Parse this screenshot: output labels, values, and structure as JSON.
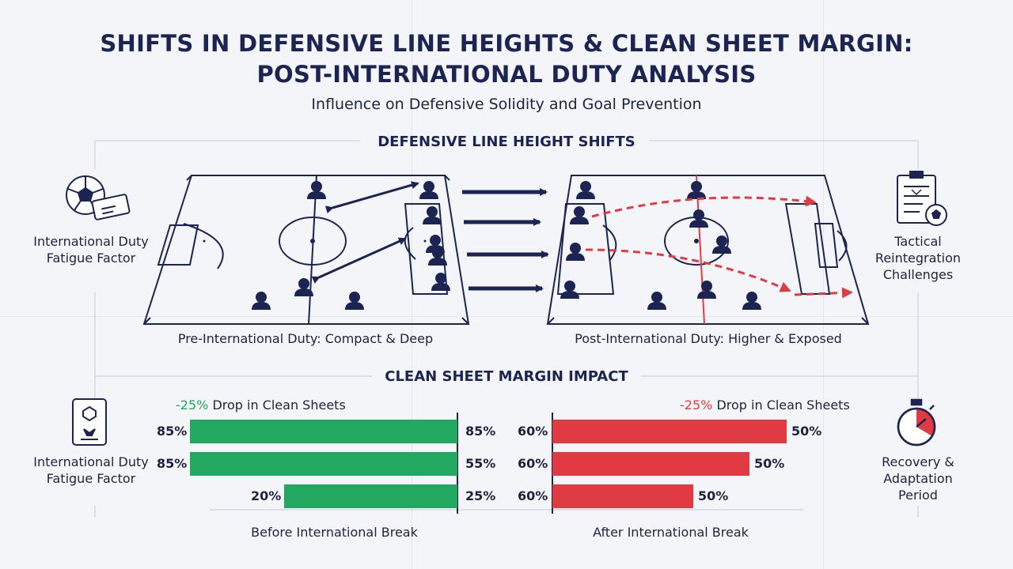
{
  "header": {
    "title_line1": "SHIFTS IN DEFENSIVE LINE HEIGHTS & CLEAN SHEET MARGIN:",
    "title_line2": "POST-INTERNATIONAL DUTY ANALYSIS",
    "subtitle": "Influence on Defensive Solidity and Goal Prevention"
  },
  "sections": {
    "line_height_title": "DEFENSIVE LINE HEIGHT SHIFTS",
    "clean_sheet_title": "CLEAN SHEET MARGIN IMPACT"
  },
  "side_labels": {
    "top_left": [
      "International Duty",
      "Fatigue Factor"
    ],
    "top_right": [
      "Tactical",
      "Reintegration",
      "Challenges"
    ],
    "bottom_left": [
      "International Duty",
      "Fatigue Factor"
    ],
    "bottom_right": [
      "Recovery &",
      "Adaptation",
      "Period"
    ]
  },
  "icons": {
    "top_left": "soccer-ball-ticket-icon",
    "top_right": "tactics-clipboard-icon",
    "bottom_left": "player-card-icon",
    "bottom_right": "stopwatch-icon"
  },
  "pitches": {
    "pre_caption": "Pre-International Duty: Compact & Deep",
    "post_caption": "Post-International Duty: Higher & Exposed"
  },
  "colors": {
    "navy": "#1b2452",
    "green": "#22a861",
    "red": "#e03b42",
    "background": "#f4f5f8"
  },
  "chart_data": [
    {
      "type": "bar",
      "orientation": "horizontal",
      "title": "Before International Break",
      "annotation_pct": "-25%",
      "annotation_text": "Drop in Clean Sheets",
      "rows": [
        {
          "left_label": "85%",
          "right_label": "85%",
          "value": 85
        },
        {
          "left_label": "85%",
          "right_label": "55%",
          "value": 85
        },
        {
          "left_label": "20%",
          "right_label": "25%",
          "value": 55
        }
      ],
      "xlim": [
        0,
        85
      ]
    },
    {
      "type": "bar",
      "orientation": "horizontal",
      "title": "After International Break",
      "annotation_pct": "-25%",
      "annotation_text": "Drop in Clean Sheets",
      "rows": [
        {
          "left_label": "60%",
          "right_label": "50%",
          "value": 50
        },
        {
          "left_label": "60%",
          "right_label": "50%",
          "value": 42
        },
        {
          "left_label": "60%",
          "right_label": "50%",
          "value": 30
        }
      ],
      "xlim": [
        0,
        50
      ]
    }
  ]
}
